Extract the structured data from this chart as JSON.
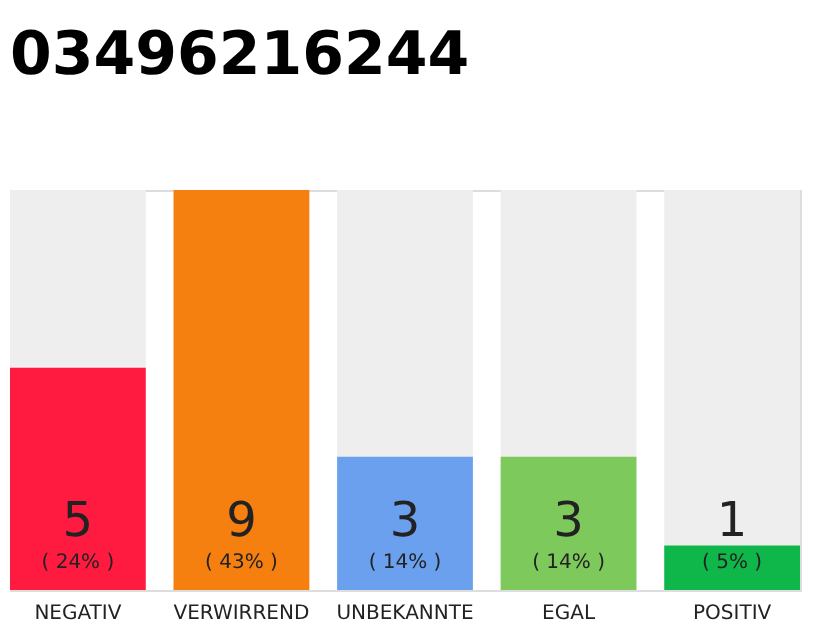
{
  "chart_data": {
    "type": "bar",
    "title": "03496216244",
    "categories": [
      "NEGATIV",
      "VERWIRREND",
      "UNBEKANNTE",
      "EGAL",
      "POSITIV"
    ],
    "values": [
      5,
      9,
      3,
      3,
      1
    ],
    "colors": [
      "#ff1a40",
      "#f57f0f",
      "#6aa0ee",
      "#7ec95c",
      "#0fb64a"
    ],
    "data_labels": true,
    "annotations": [
      "( 24% )",
      "( 43% )",
      "( 14% )",
      "( 14% )",
      "( 5% )"
    ]
  }
}
